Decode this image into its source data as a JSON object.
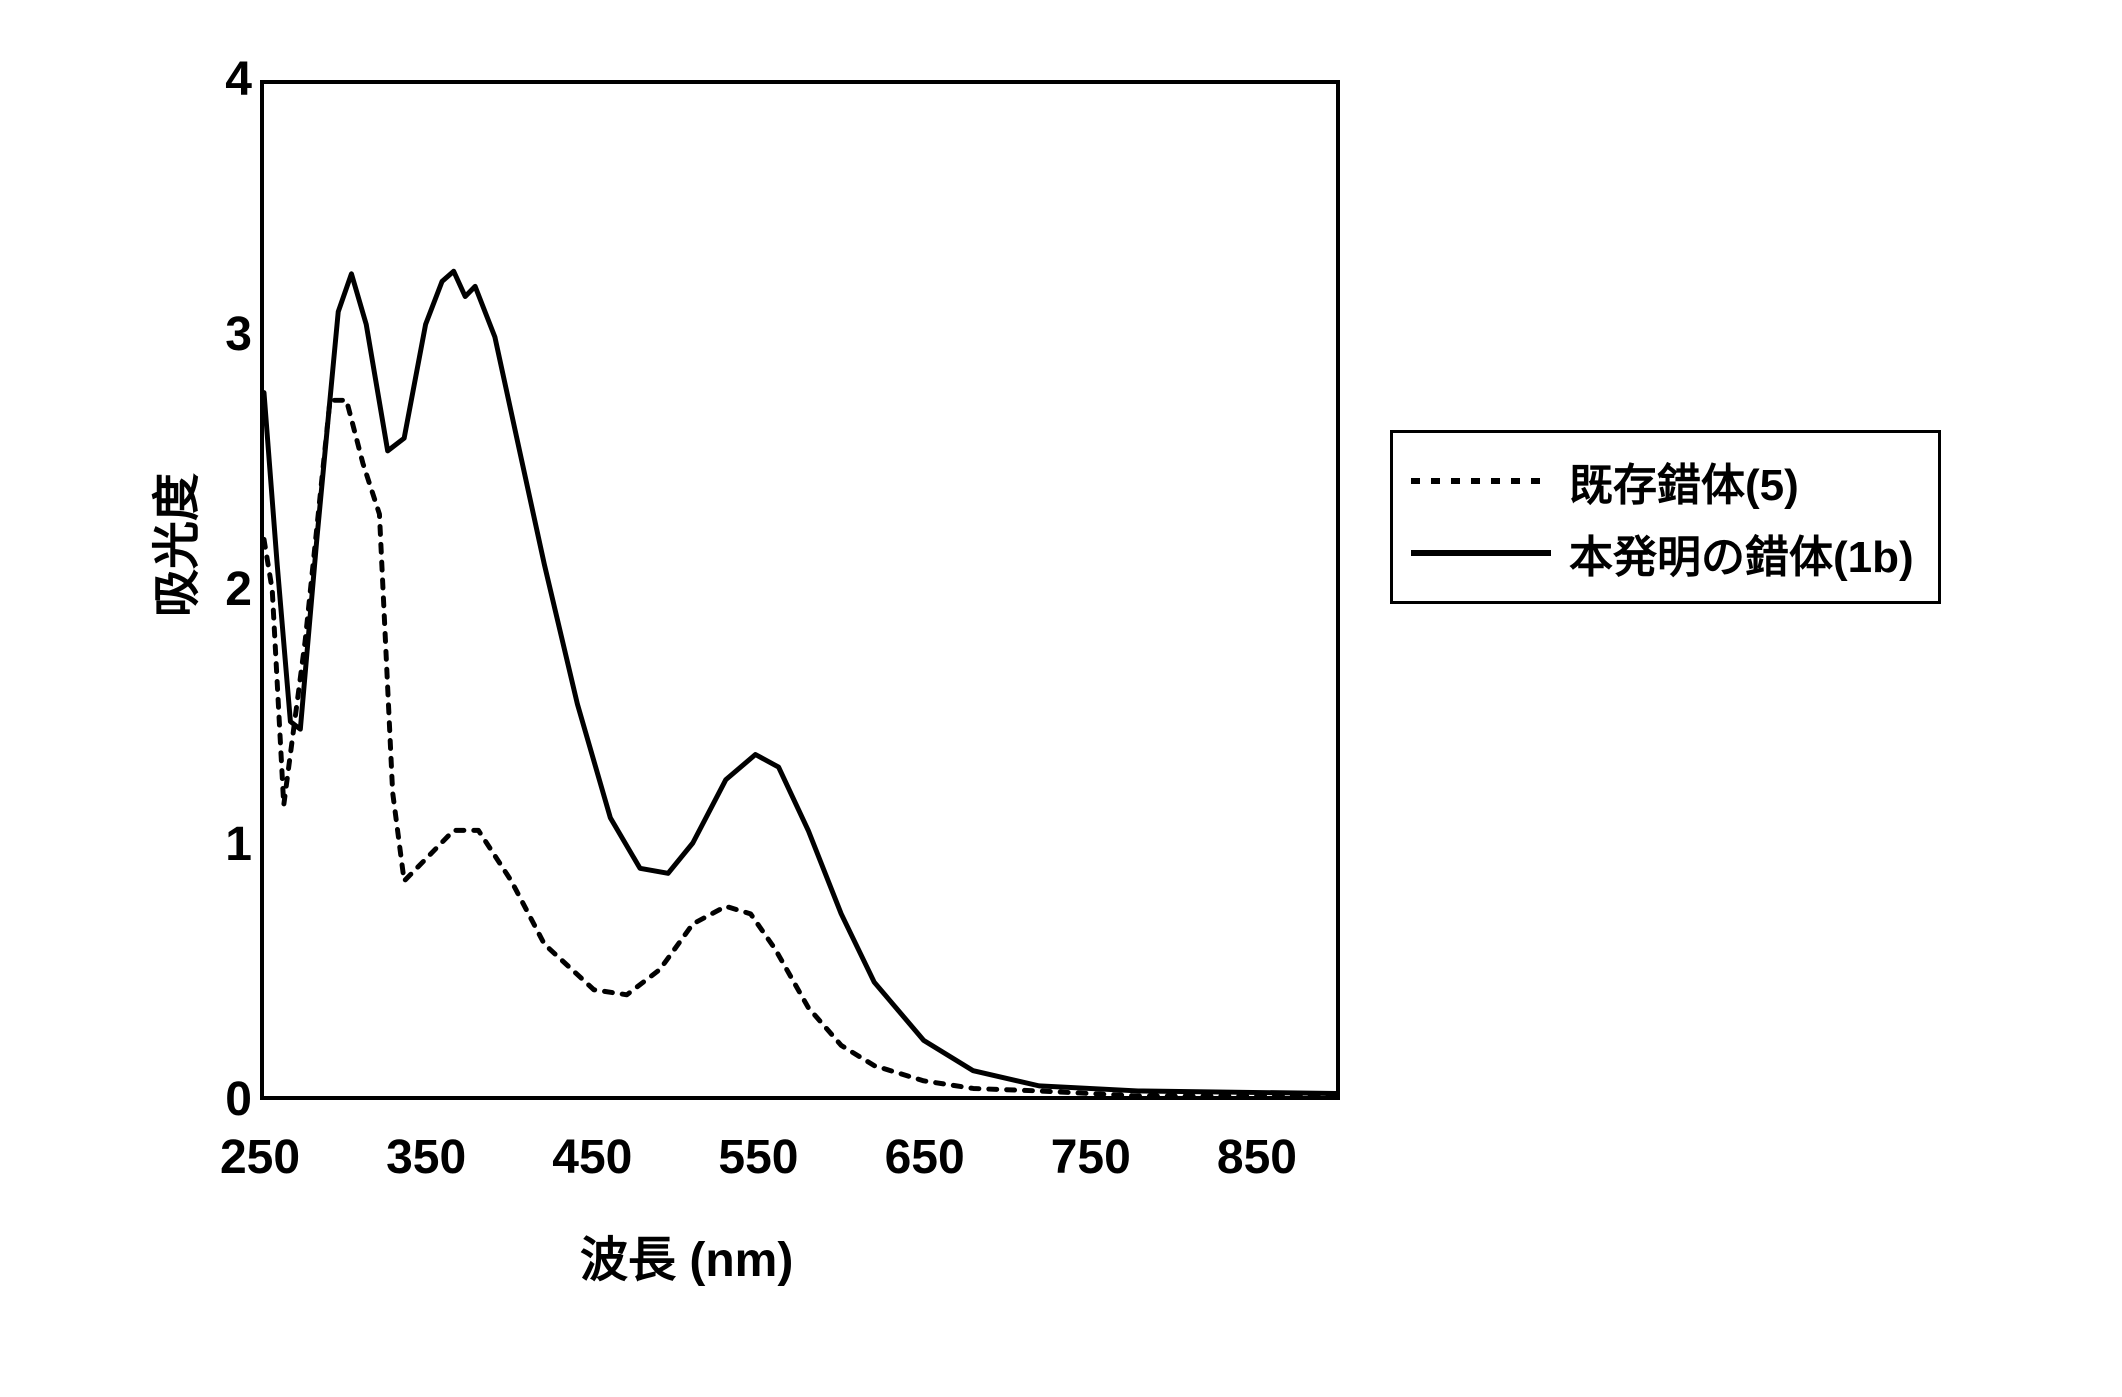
{
  "chart": {
    "type": "line",
    "x_axis": {
      "label": "波長 (nm)",
      "min": 250,
      "max": 900,
      "ticks": [
        250,
        350,
        450,
        550,
        650,
        750,
        850
      ],
      "label_fontsize": 48
    },
    "y_axis": {
      "label": "吸光度",
      "min": 0,
      "max": 4,
      "ticks": [
        0,
        1,
        2,
        3,
        4
      ],
      "label_fontsize": 48
    },
    "background_color": "#ffffff",
    "border_color": "#000000",
    "border_width": 4,
    "tick_length": 20,
    "tick_label_fontsize": 48,
    "series": [
      {
        "name": "既存錯体(5)",
        "line_style": "dashed",
        "dash_pattern": "8,10",
        "line_width": 5,
        "color": "#000000",
        "data": [
          {
            "x": 250,
            "y": 2.2
          },
          {
            "x": 255,
            "y": 2.0
          },
          {
            "x": 262,
            "y": 1.15
          },
          {
            "x": 275,
            "y": 1.8
          },
          {
            "x": 290,
            "y": 2.75
          },
          {
            "x": 300,
            "y": 2.75
          },
          {
            "x": 310,
            "y": 2.5
          },
          {
            "x": 320,
            "y": 2.3
          },
          {
            "x": 328,
            "y": 1.2
          },
          {
            "x": 335,
            "y": 0.85
          },
          {
            "x": 350,
            "y": 0.95
          },
          {
            "x": 365,
            "y": 1.05
          },
          {
            "x": 380,
            "y": 1.05
          },
          {
            "x": 400,
            "y": 0.85
          },
          {
            "x": 420,
            "y": 0.6
          },
          {
            "x": 450,
            "y": 0.42
          },
          {
            "x": 470,
            "y": 0.4
          },
          {
            "x": 490,
            "y": 0.5
          },
          {
            "x": 510,
            "y": 0.68
          },
          {
            "x": 530,
            "y": 0.75
          },
          {
            "x": 545,
            "y": 0.72
          },
          {
            "x": 560,
            "y": 0.58
          },
          {
            "x": 580,
            "y": 0.35
          },
          {
            "x": 600,
            "y": 0.2
          },
          {
            "x": 620,
            "y": 0.12
          },
          {
            "x": 650,
            "y": 0.06
          },
          {
            "x": 680,
            "y": 0.03
          },
          {
            "x": 720,
            "y": 0.02
          },
          {
            "x": 780,
            "y": 0.0
          },
          {
            "x": 900,
            "y": 0.0
          }
        ]
      },
      {
        "name": "本発明の錯体(1b)",
        "line_style": "solid",
        "line_width": 5,
        "color": "#000000",
        "data": [
          {
            "x": 250,
            "y": 2.78
          },
          {
            "x": 258,
            "y": 2.1
          },
          {
            "x": 266,
            "y": 1.48
          },
          {
            "x": 272,
            "y": 1.45
          },
          {
            "x": 282,
            "y": 2.2
          },
          {
            "x": 295,
            "y": 3.1
          },
          {
            "x": 303,
            "y": 3.25
          },
          {
            "x": 312,
            "y": 3.05
          },
          {
            "x": 325,
            "y": 2.55
          },
          {
            "x": 335,
            "y": 2.6
          },
          {
            "x": 348,
            "y": 3.05
          },
          {
            "x": 358,
            "y": 3.22
          },
          {
            "x": 365,
            "y": 3.26
          },
          {
            "x": 372,
            "y": 3.16
          },
          {
            "x": 378,
            "y": 3.2
          },
          {
            "x": 390,
            "y": 3.0
          },
          {
            "x": 405,
            "y": 2.55
          },
          {
            "x": 420,
            "y": 2.1
          },
          {
            "x": 440,
            "y": 1.55
          },
          {
            "x": 460,
            "y": 1.1
          },
          {
            "x": 478,
            "y": 0.9
          },
          {
            "x": 495,
            "y": 0.88
          },
          {
            "x": 510,
            "y": 1.0
          },
          {
            "x": 530,
            "y": 1.25
          },
          {
            "x": 548,
            "y": 1.35
          },
          {
            "x": 562,
            "y": 1.3
          },
          {
            "x": 580,
            "y": 1.05
          },
          {
            "x": 600,
            "y": 0.72
          },
          {
            "x": 620,
            "y": 0.45
          },
          {
            "x": 650,
            "y": 0.22
          },
          {
            "x": 680,
            "y": 0.1
          },
          {
            "x": 720,
            "y": 0.04
          },
          {
            "x": 780,
            "y": 0.02
          },
          {
            "x": 900,
            "y": 0.01
          }
        ]
      }
    ],
    "legend": {
      "position": "right",
      "border_color": "#000000",
      "border_width": 3,
      "background_color": "#ffffff",
      "item_fontsize": 44,
      "swatch_width": 140
    }
  }
}
